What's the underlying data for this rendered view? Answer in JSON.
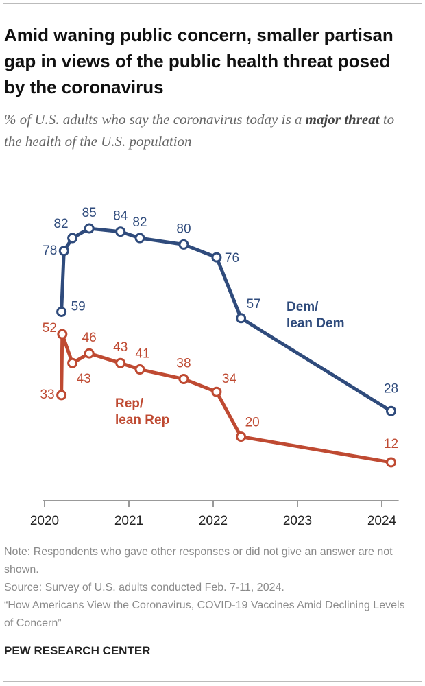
{
  "chart_data": {
    "type": "line",
    "title": "Amid waning public concern, smaller partisan gap in views of the public health threat posed by the coronavirus",
    "subtitle": [
      "% of U.S. adults who say the coronavirus today is a",
      "major threat",
      "to the health of the U.S. population"
    ],
    "xlim": [
      2020,
      2024.2
    ],
    "xticks": [
      2020,
      2021,
      2022,
      2023,
      2024
    ],
    "ylim": [
      0,
      100
    ],
    "series": [
      {
        "name": "Dem/\nlean Dem",
        "color": "#2f4b7c",
        "x": [
          2020.2,
          2020.23,
          2020.33,
          2020.53,
          2020.9,
          2021.13,
          2021.65,
          2022.04,
          2022.33,
          2024.11
        ],
        "values": [
          59,
          78,
          82,
          85,
          84,
          82,
          80,
          76,
          57,
          28
        ]
      },
      {
        "name": "Rep/\nlean Rep",
        "color": "#bf4a32",
        "x": [
          2020.2,
          2020.21,
          2020.33,
          2020.53,
          2020.9,
          2021.13,
          2021.65,
          2022.04,
          2022.33,
          2024.11
        ],
        "values": [
          33,
          52,
          43,
          46,
          43,
          41,
          38,
          34,
          20,
          12
        ]
      }
    ],
    "notes": [
      "Note: Respondents who gave other responses or did not give an answer are not shown.",
      "Source: Survey of U.S. adults conducted Feb. 7-11, 2024.",
      "“How Americans View the Coronavirus, COVID-19 Vaccines Amid Declining Levels of Concern”"
    ],
    "footer": "PEW RESEARCH CENTER"
  }
}
